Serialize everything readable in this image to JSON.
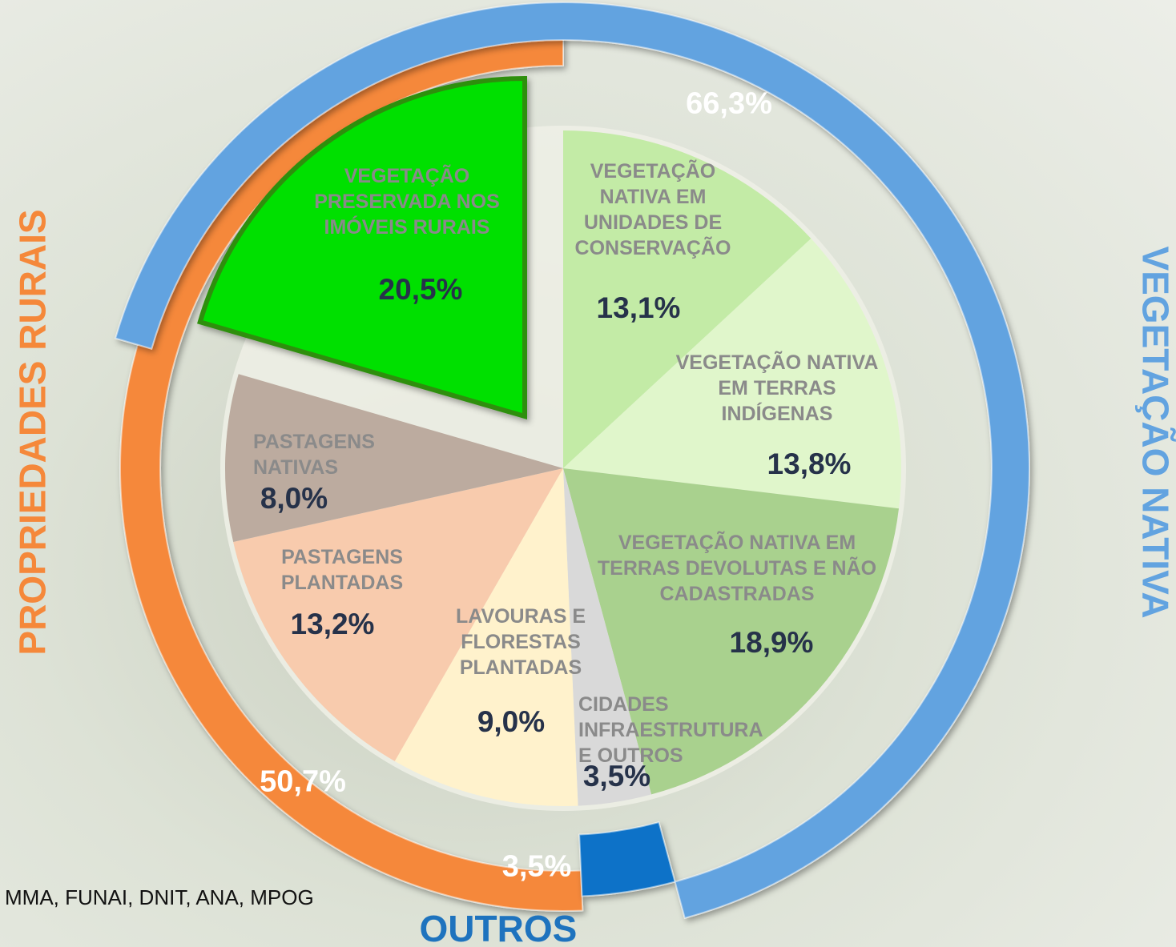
{
  "chart_data": {
    "type": "pie",
    "slices": {
      "categories": [
        "VEGETAÇÃO NATIVA EM UNIDADES DE CONSERVAÇÃO",
        "VEGETAÇÃO NATIVA EM TERRAS INDÍGENAS",
        "VEGETAÇÃO NATIVA EM TERRAS DEVOLUTAS E NÃO CADASTRADAS",
        "CIDADES INFRAESTRUTURA E OUTROS",
        "LAVOURAS E FLORESTAS PLANTADAS",
        "PASTAGENS PLANTADAS",
        "PASTAGENS NATIVAS",
        "VEGETAÇÃO PRESERVADA NOS IMÓVEIS RURAIS"
      ],
      "values": [
        13.1,
        13.8,
        18.9,
        3.5,
        9.0,
        13.2,
        8.0,
        20.5
      ],
      "value_labels": [
        "13,1%",
        "13,8%",
        "18,9%",
        "3,5%",
        "9,0%",
        "13,2%",
        "8,0%",
        "20,5%"
      ],
      "colors": [
        "#c3eba6",
        "#e0f6cb",
        "#a9d18e",
        "#d9d9d9",
        "#fff2cc",
        "#f8cbad",
        "#bcab9f",
        "#00e000"
      ],
      "exploded": [
        false,
        false,
        false,
        false,
        false,
        false,
        false,
        true
      ]
    },
    "ring": {
      "categories": [
        "VEGETAÇÃO NATIVA",
        "OUTROS",
        "PROPRIEDADES RURAIS"
      ],
      "values": [
        66.3,
        3.5,
        50.7
      ],
      "value_labels": [
        "66,3%",
        "3,5%",
        "50,7%"
      ],
      "colors": [
        "#62a3e0",
        "#0a72c8",
        "#f5883a"
      ]
    },
    "source": "MMA, FUNAI, DNIT, ANA, MPOG"
  }
}
